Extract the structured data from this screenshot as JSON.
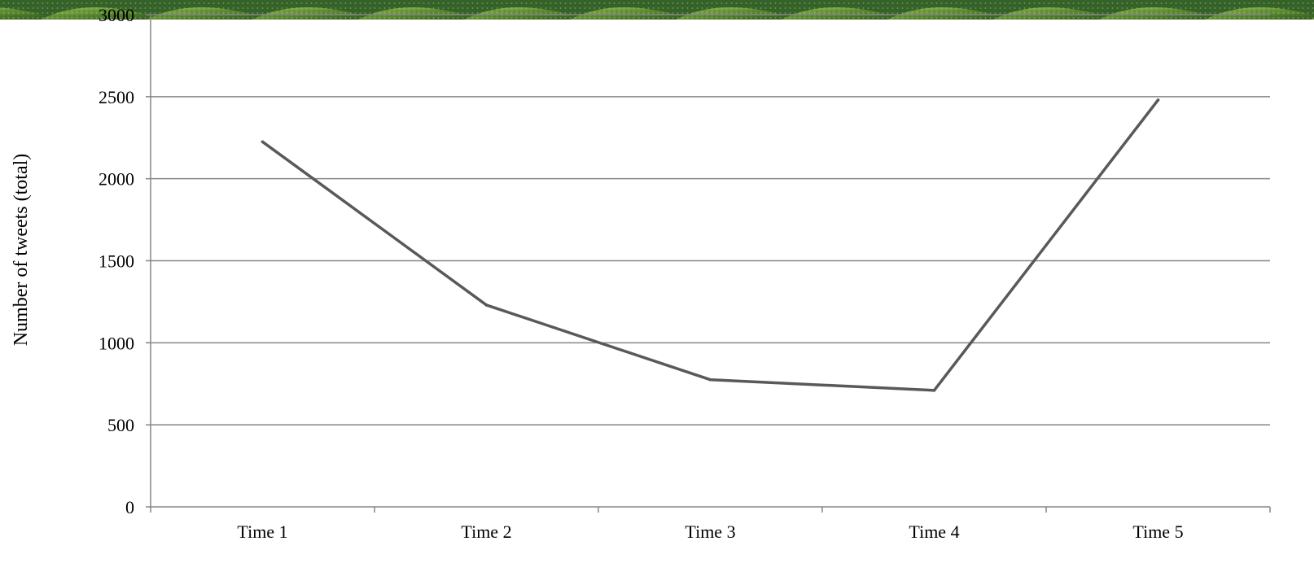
{
  "chart_data": {
    "type": "line",
    "title": "",
    "xlabel": "",
    "ylabel": "Number of tweets (total)",
    "categories": [
      "Time 1",
      "Time 2",
      "Time 3",
      "Time 4",
      "Time 5"
    ],
    "series": [
      {
        "values": [
          2225,
          1230,
          775,
          710,
          2480
        ]
      }
    ],
    "ylim": [
      0,
      3000
    ],
    "yticks": [
      0,
      500,
      1000,
      1500,
      2000,
      2500,
      3000
    ],
    "grid": true,
    "legend": "none"
  },
  "colors": {
    "line": "#595959",
    "grid": "#868686",
    "axis": "#868686",
    "banner_foliage_dark": "#2f5a1e",
    "banner_foliage_light": "#7fa84a"
  },
  "banner": {
    "description_icon": "tea-field-photo-strip"
  }
}
